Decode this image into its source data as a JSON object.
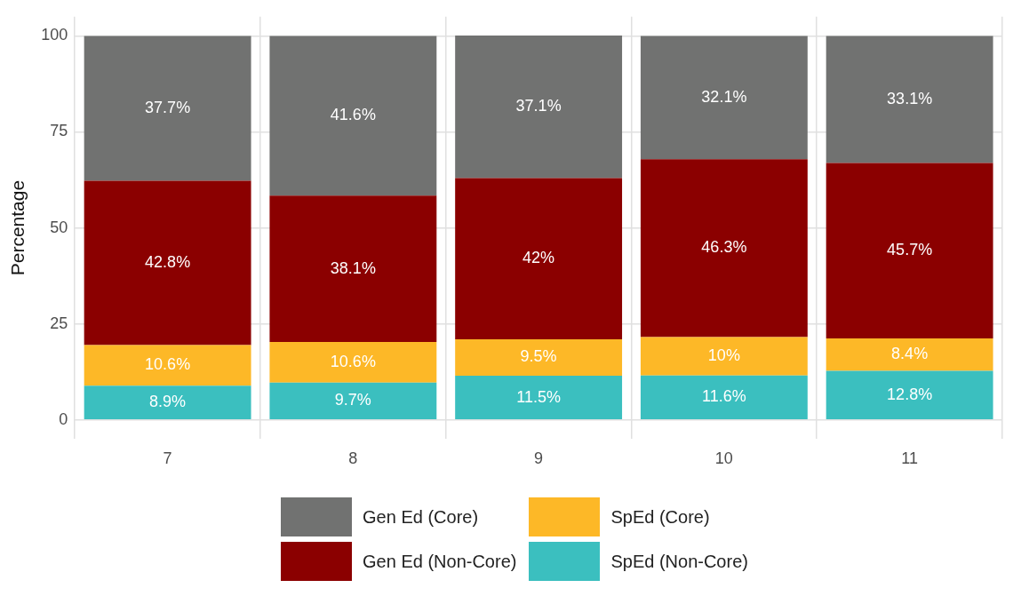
{
  "chart_data": {
    "type": "bar",
    "stacked": true,
    "ylabel": "Percentage",
    "categories": [
      "7",
      "8",
      "9",
      "10",
      "11"
    ],
    "ylim": [
      -5,
      105
    ],
    "yticks": [
      0,
      25,
      50,
      75,
      100
    ],
    "grid": true,
    "legend": "bottom",
    "series": [
      {
        "name": "SpEd (Non-Core)",
        "color": "#3bbfbf",
        "values": [
          8.9,
          9.7,
          11.5,
          11.6,
          12.8
        ],
        "value_labels": [
          "8.9%",
          "9.7%",
          "11.5%",
          "11.6%",
          "12.8%"
        ]
      },
      {
        "name": "SpEd (Core)",
        "color": "#fdb827",
        "values": [
          10.6,
          10.6,
          9.5,
          10,
          8.4
        ],
        "value_labels": [
          "10.6%",
          "10.6%",
          "9.5%",
          "10%",
          "8.4%"
        ]
      },
      {
        "name": "Gen Ed (Non-Core)",
        "color": "#8b0000",
        "values": [
          42.8,
          38.1,
          42,
          46.3,
          45.7
        ],
        "value_labels": [
          "42.8%",
          "38.1%",
          "42%",
          "46.3%",
          "45.7%"
        ]
      },
      {
        "name": "Gen Ed (Core)",
        "color": "#717271",
        "values": [
          37.7,
          41.6,
          37.1,
          32.1,
          33.1
        ],
        "value_labels": [
          "37.7%",
          "41.6%",
          "37.1%",
          "32.1%",
          "33.1%"
        ]
      }
    ]
  }
}
